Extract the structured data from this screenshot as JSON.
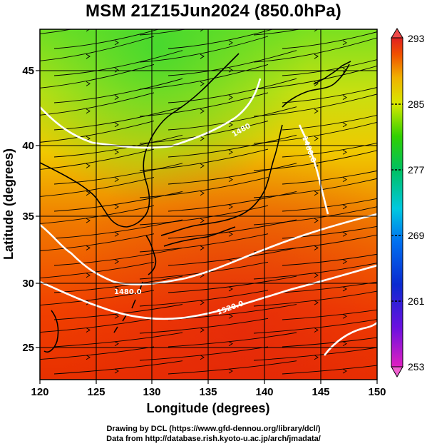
{
  "title": "MSM 21Z15Jun2024 (850.0hPa)",
  "axes": {
    "xlabel": "Longitude (degrees)",
    "ylabel": "Latitude  (degrees)",
    "x_ticks": [
      "120",
      "125",
      "130",
      "135",
      "140",
      "145",
      "150"
    ],
    "y_ticks": [
      "25",
      "30",
      "35",
      "40",
      "45"
    ],
    "x_range": [
      120,
      150
    ],
    "y_range": [
      22.5,
      47.5
    ]
  },
  "colorbar": {
    "labels": [
      "293",
      "285",
      "277",
      "269",
      "261",
      "253"
    ],
    "range": [
      253,
      293
    ]
  },
  "contour_labels": [
    "1480.0",
    "1520.0",
    "1480",
    "1480.0"
  ],
  "footer": {
    "line1": "Drawing by DCL (https://www.gfd-dennou.org/library/dcl/)",
    "line2": "Data from http://database.rish.kyoto-u.ac.jp/arch/jmadata/"
  }
}
